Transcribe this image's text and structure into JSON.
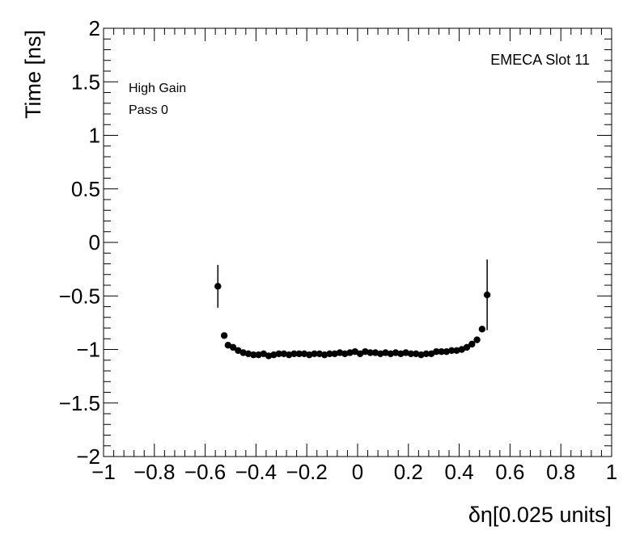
{
  "chart_data": {
    "type": "scatter",
    "xlabel": "δη[0.025 units]",
    "ylabel": "Time [ns]",
    "xlim": [
      -1,
      1
    ],
    "ylim": [
      -2,
      2
    ],
    "xticks": [
      -1,
      -0.8,
      -0.6,
      -0.4,
      -0.2,
      0,
      0.2,
      0.4,
      0.6,
      0.8,
      1
    ],
    "xtick_labels": [
      "−1",
      "−0.8",
      "−0.6",
      "−0.4",
      "−0.2",
      "0",
      "0.2",
      "0.4",
      "0.6",
      "0.8",
      "1"
    ],
    "yticks": [
      -2,
      -1.5,
      -1,
      -0.5,
      0,
      0.5,
      1,
      1.5,
      2
    ],
    "ytick_labels": [
      "−2",
      "−1.5",
      "−1",
      "−0.5",
      "0",
      "0.5",
      "1",
      "1.5",
      "2"
    ],
    "grid": false,
    "annotations": {
      "gain": "High Gain",
      "pass": "Pass 0",
      "slot": "EMECA Slot 11"
    },
    "points": [
      {
        "x": -0.55,
        "y": -0.41,
        "err": 0.2
      },
      {
        "x": -0.525,
        "y": -0.87,
        "err": 0.0
      },
      {
        "x": -0.51,
        "y": -0.96,
        "err": 0.0
      },
      {
        "x": -0.49,
        "y": -0.98,
        "err": 0.0
      },
      {
        "x": -0.47,
        "y": -1.01,
        "err": 0.0
      },
      {
        "x": -0.45,
        "y": -1.03,
        "err": 0.0
      },
      {
        "x": -0.43,
        "y": -1.04,
        "err": 0.0
      },
      {
        "x": -0.41,
        "y": -1.05,
        "err": 0.0
      },
      {
        "x": -0.39,
        "y": -1.05,
        "err": 0.0
      },
      {
        "x": -0.37,
        "y": -1.04,
        "err": 0.0
      },
      {
        "x": -0.35,
        "y": -1.06,
        "err": 0.0
      },
      {
        "x": -0.33,
        "y": -1.05,
        "err": 0.0
      },
      {
        "x": -0.31,
        "y": -1.04,
        "err": 0.0
      },
      {
        "x": -0.29,
        "y": -1.04,
        "err": 0.0
      },
      {
        "x": -0.27,
        "y": -1.05,
        "err": 0.0
      },
      {
        "x": -0.25,
        "y": -1.04,
        "err": 0.0
      },
      {
        "x": -0.23,
        "y": -1.04,
        "err": 0.0
      },
      {
        "x": -0.21,
        "y": -1.04,
        "err": 0.0
      },
      {
        "x": -0.19,
        "y": -1.05,
        "err": 0.0
      },
      {
        "x": -0.17,
        "y": -1.04,
        "err": 0.0
      },
      {
        "x": -0.15,
        "y": -1.04,
        "err": 0.0
      },
      {
        "x": -0.13,
        "y": -1.05,
        "err": 0.0
      },
      {
        "x": -0.11,
        "y": -1.04,
        "err": 0.0
      },
      {
        "x": -0.09,
        "y": -1.04,
        "err": 0.0
      },
      {
        "x": -0.07,
        "y": -1.03,
        "err": 0.0
      },
      {
        "x": -0.05,
        "y": -1.04,
        "err": 0.0
      },
      {
        "x": -0.03,
        "y": -1.03,
        "err": 0.0
      },
      {
        "x": -0.01,
        "y": -1.02,
        "err": 0.0
      },
      {
        "x": 0.01,
        "y": -1.04,
        "err": 0.0
      },
      {
        "x": 0.03,
        "y": -1.02,
        "err": 0.0
      },
      {
        "x": 0.05,
        "y": -1.03,
        "err": 0.0
      },
      {
        "x": 0.07,
        "y": -1.03,
        "err": 0.0
      },
      {
        "x": 0.09,
        "y": -1.04,
        "err": 0.0
      },
      {
        "x": 0.11,
        "y": -1.03,
        "err": 0.0
      },
      {
        "x": 0.13,
        "y": -1.04,
        "err": 0.0
      },
      {
        "x": 0.15,
        "y": -1.03,
        "err": 0.0
      },
      {
        "x": 0.17,
        "y": -1.04,
        "err": 0.0
      },
      {
        "x": 0.19,
        "y": -1.03,
        "err": 0.0
      },
      {
        "x": 0.21,
        "y": -1.04,
        "err": 0.0
      },
      {
        "x": 0.23,
        "y": -1.04,
        "err": 0.0
      },
      {
        "x": 0.25,
        "y": -1.05,
        "err": 0.0
      },
      {
        "x": 0.27,
        "y": -1.04,
        "err": 0.0
      },
      {
        "x": 0.29,
        "y": -1.04,
        "err": 0.0
      },
      {
        "x": 0.31,
        "y": -1.02,
        "err": 0.0
      },
      {
        "x": 0.33,
        "y": -1.02,
        "err": 0.0
      },
      {
        "x": 0.35,
        "y": -1.02,
        "err": 0.0
      },
      {
        "x": 0.37,
        "y": -1.01,
        "err": 0.0
      },
      {
        "x": 0.39,
        "y": -1.01,
        "err": 0.0
      },
      {
        "x": 0.41,
        "y": -1.0,
        "err": 0.0
      },
      {
        "x": 0.43,
        "y": -0.98,
        "err": 0.0
      },
      {
        "x": 0.45,
        "y": -0.95,
        "err": 0.0
      },
      {
        "x": 0.47,
        "y": -0.91,
        "err": 0.0
      },
      {
        "x": 0.49,
        "y": -0.81,
        "err": 0.0
      },
      {
        "x": 0.51,
        "y": -0.49,
        "err": 0.33
      }
    ]
  }
}
